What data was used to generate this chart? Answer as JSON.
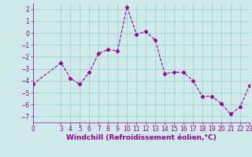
{
  "x": [
    0,
    3,
    4,
    5,
    6,
    7,
    8,
    9,
    10,
    11,
    12,
    13,
    14,
    15,
    16,
    17,
    18,
    19,
    20,
    21,
    22,
    23
  ],
  "y": [
    -4.3,
    -2.5,
    -3.8,
    -4.3,
    -3.3,
    -1.7,
    -1.4,
    -1.5,
    2.2,
    -0.1,
    0.1,
    -0.6,
    -3.4,
    -3.3,
    -3.3,
    -4.0,
    -5.3,
    -5.3,
    -5.9,
    -6.8,
    -6.2,
    -4.4
  ],
  "line_color": "#990099",
  "marker": "D",
  "marker_size": 2.5,
  "bg_color": "#ceeaea",
  "grid_color": "#aacfcf",
  "xlabel": "Windchill (Refroidissement éolien,°C)",
  "tick_fontsize": 5.5,
  "xlabel_fontsize": 6.5,
  "yticks": [
    -7,
    -6,
    -5,
    -4,
    -3,
    -2,
    -1,
    0,
    1,
    2
  ],
  "xticks": [
    0,
    3,
    4,
    5,
    6,
    7,
    8,
    9,
    10,
    11,
    12,
    13,
    14,
    15,
    16,
    17,
    18,
    19,
    20,
    21,
    22,
    23
  ],
  "ylim": [
    -7.5,
    2.5
  ],
  "xlim": [
    0,
    23
  ]
}
